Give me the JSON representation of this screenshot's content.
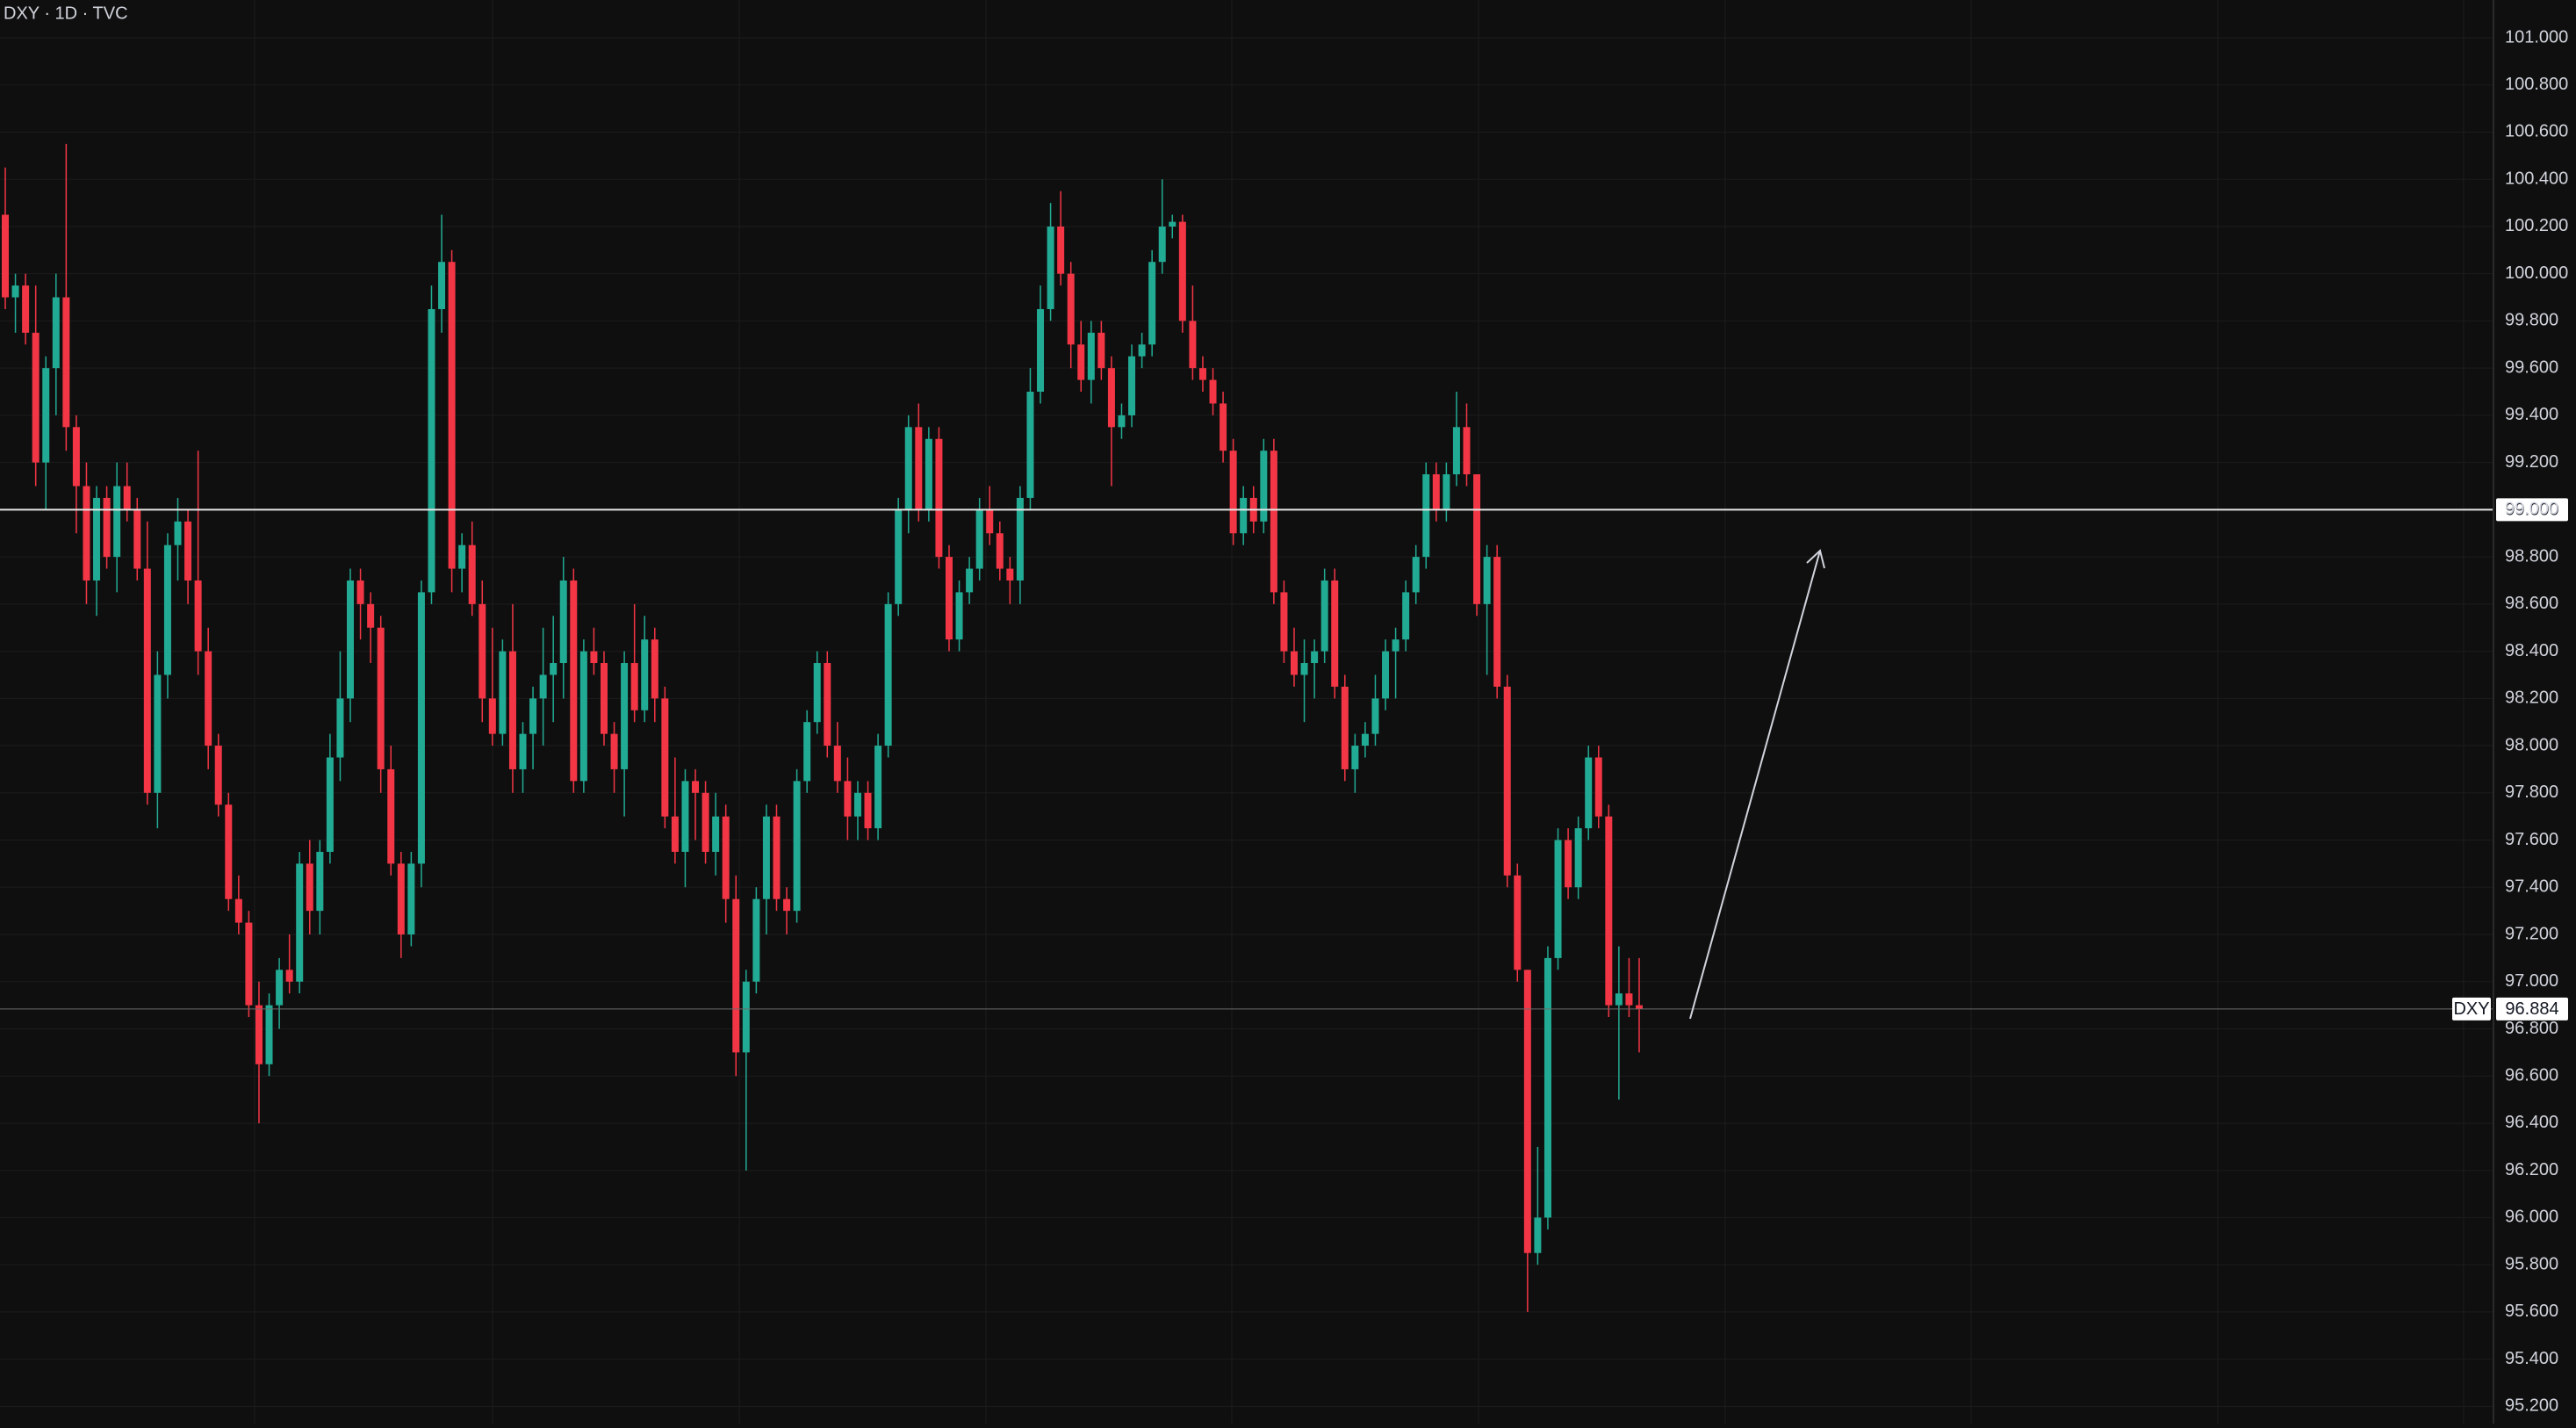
{
  "chart_data": {
    "type": "candlestick",
    "title": "DXY · 1D · TVC",
    "symbol": "DXY",
    "up_color": "#22ab94",
    "down_color": "#f23645",
    "ylim": [
      95.127,
      101.16
    ],
    "yticks": [
      {
        "value": 101,
        "label": "101.000"
      },
      {
        "value": 100.8,
        "label": "100.800"
      },
      {
        "value": 100.6,
        "label": "100.600"
      },
      {
        "value": 100.4,
        "label": "100.400"
      },
      {
        "value": 100.2,
        "label": "100.200"
      },
      {
        "value": 100,
        "label": "100.000"
      },
      {
        "value": 99.8,
        "label": "99.800"
      },
      {
        "value": 99.6,
        "label": "99.600"
      },
      {
        "value": 99.4,
        "label": "99.400"
      },
      {
        "value": 99.2,
        "label": "99.200"
      },
      {
        "value": 99,
        "label": "99.000"
      },
      {
        "value": 98.8,
        "label": "98.800"
      },
      {
        "value": 98.6,
        "label": "98.600"
      },
      {
        "value": 98.4,
        "label": "98.400"
      },
      {
        "value": 98.2,
        "label": "98.200"
      },
      {
        "value": 98,
        "label": "98.000"
      },
      {
        "value": 97.8,
        "label": "97.800"
      },
      {
        "value": 97.6,
        "label": "97.600"
      },
      {
        "value": 97.4,
        "label": "97.400"
      },
      {
        "value": 97.2,
        "label": "97.200"
      },
      {
        "value": 97,
        "label": "97.000"
      },
      {
        "value": 96.8,
        "label": "96.800"
      },
      {
        "value": 96.6,
        "label": "96.600"
      },
      {
        "value": 96.4,
        "label": "96.400"
      },
      {
        "value": 96.2,
        "label": "96.200"
      },
      {
        "value": 96,
        "label": "96.000"
      },
      {
        "value": 95.8,
        "label": "95.800"
      },
      {
        "value": 95.6,
        "label": "95.600"
      },
      {
        "value": 95.4,
        "label": "95.400"
      },
      {
        "value": 95.2,
        "label": "95.200"
      }
    ],
    "grid": true,
    "horizontal_line": {
      "value": 99,
      "label": "99.000"
    },
    "last_price": 96.884,
    "ohlc": [
      [
        100.25,
        100.45,
        99.85,
        99.9
      ],
      [
        99.9,
        100.0,
        99.75,
        99.95
      ],
      [
        99.95,
        100.0,
        99.7,
        99.75
      ],
      [
        99.75,
        99.95,
        99.1,
        99.2
      ],
      [
        99.2,
        99.65,
        99.0,
        99.6
      ],
      [
        99.6,
        100.0,
        99.4,
        99.9
      ],
      [
        99.9,
        100.55,
        99.25,
        99.35
      ],
      [
        99.35,
        99.4,
        98.9,
        99.1
      ],
      [
        99.1,
        99.2,
        98.6,
        98.7
      ],
      [
        98.7,
        99.1,
        98.55,
        99.05
      ],
      [
        99.05,
        99.1,
        98.75,
        98.8
      ],
      [
        98.8,
        99.2,
        98.65,
        99.1
      ],
      [
        99.1,
        99.2,
        98.95,
        99.0
      ],
      [
        99.0,
        99.05,
        98.7,
        98.75
      ],
      [
        98.75,
        98.95,
        97.75,
        97.8
      ],
      [
        97.8,
        98.4,
        97.65,
        98.3
      ],
      [
        98.3,
        98.9,
        98.2,
        98.85
      ],
      [
        98.85,
        99.05,
        98.7,
        98.95
      ],
      [
        98.95,
        99.0,
        98.6,
        98.7
      ],
      [
        98.7,
        99.25,
        98.3,
        98.4
      ],
      [
        98.4,
        98.5,
        97.9,
        98.0
      ],
      [
        98.0,
        98.05,
        97.7,
        97.75
      ],
      [
        97.75,
        97.8,
        97.3,
        97.35
      ],
      [
        97.35,
        97.45,
        97.2,
        97.25
      ],
      [
        97.25,
        97.3,
        96.85,
        96.9
      ],
      [
        96.9,
        97.0,
        96.4,
        96.65
      ],
      [
        96.65,
        96.95,
        96.6,
        96.9
      ],
      [
        96.9,
        97.1,
        96.8,
        97.05
      ],
      [
        97.05,
        97.2,
        96.95,
        97.0
      ],
      [
        97.0,
        97.55,
        96.95,
        97.5
      ],
      [
        97.5,
        97.6,
        97.2,
        97.3
      ],
      [
        97.3,
        97.6,
        97.2,
        97.55
      ],
      [
        97.55,
        98.05,
        97.5,
        97.95
      ],
      [
        97.95,
        98.4,
        97.85,
        98.2
      ],
      [
        98.2,
        98.75,
        98.1,
        98.7
      ],
      [
        98.7,
        98.75,
        98.45,
        98.6
      ],
      [
        98.6,
        98.65,
        98.35,
        98.5
      ],
      [
        98.5,
        98.55,
        97.8,
        97.9
      ],
      [
        97.9,
        98.0,
        97.45,
        97.5
      ],
      [
        97.5,
        97.55,
        97.1,
        97.2
      ],
      [
        97.2,
        97.55,
        97.15,
        97.5
      ],
      [
        97.5,
        98.7,
        97.4,
        98.65
      ],
      [
        98.65,
        99.95,
        98.6,
        99.85
      ],
      [
        99.85,
        100.25,
        99.75,
        100.05
      ],
      [
        100.05,
        100.1,
        98.65,
        98.75
      ],
      [
        98.75,
        98.9,
        98.65,
        98.85
      ],
      [
        98.85,
        98.95,
        98.55,
        98.6
      ],
      [
        98.6,
        98.7,
        98.1,
        98.2
      ],
      [
        98.2,
        98.5,
        98.0,
        98.05
      ],
      [
        98.05,
        98.45,
        98.0,
        98.4
      ],
      [
        98.4,
        98.6,
        97.8,
        97.9
      ],
      [
        97.9,
        98.1,
        97.8,
        98.05
      ],
      [
        98.05,
        98.25,
        97.9,
        98.2
      ],
      [
        98.2,
        98.5,
        98.0,
        98.3
      ],
      [
        98.3,
        98.55,
        98.1,
        98.35
      ],
      [
        98.35,
        98.8,
        98.2,
        98.7
      ],
      [
        98.7,
        98.75,
        97.8,
        97.85
      ],
      [
        97.85,
        98.45,
        97.8,
        98.4
      ],
      [
        98.4,
        98.5,
        98.3,
        98.35
      ],
      [
        98.35,
        98.4,
        98.0,
        98.05
      ],
      [
        98.05,
        98.1,
        97.8,
        97.9
      ],
      [
        97.9,
        98.4,
        97.7,
        98.35
      ],
      [
        98.35,
        98.6,
        98.1,
        98.15
      ],
      [
        98.15,
        98.55,
        98.1,
        98.45
      ],
      [
        98.45,
        98.5,
        98.1,
        98.2
      ],
      [
        98.2,
        98.25,
        97.65,
        97.7
      ],
      [
        97.7,
        97.95,
        97.5,
        97.55
      ],
      [
        97.55,
        97.9,
        97.4,
        97.85
      ],
      [
        97.85,
        97.9,
        97.6,
        97.8
      ],
      [
        97.8,
        97.85,
        97.5,
        97.55
      ],
      [
        97.55,
        97.8,
        97.45,
        97.7
      ],
      [
        97.7,
        97.75,
        97.25,
        97.35
      ],
      [
        97.35,
        97.45,
        96.6,
        96.7
      ],
      [
        96.7,
        97.05,
        96.2,
        97.0
      ],
      [
        97.0,
        97.4,
        96.95,
        97.35
      ],
      [
        97.35,
        97.75,
        97.2,
        97.7
      ],
      [
        97.7,
        97.75,
        97.3,
        97.35
      ],
      [
        97.35,
        97.4,
        97.2,
        97.3
      ],
      [
        97.3,
        97.9,
        97.25,
        97.85
      ],
      [
        97.85,
        98.15,
        97.8,
        98.1
      ],
      [
        98.1,
        98.4,
        98.05,
        98.35
      ],
      [
        98.35,
        98.4,
        97.95,
        98.0
      ],
      [
        98.0,
        98.1,
        97.8,
        97.85
      ],
      [
        97.85,
        97.95,
        97.6,
        97.7
      ],
      [
        97.7,
        97.85,
        97.6,
        97.8
      ],
      [
        97.8,
        97.85,
        97.6,
        97.65
      ],
      [
        97.65,
        98.05,
        97.6,
        98.0
      ],
      [
        98.0,
        98.65,
        97.95,
        98.6
      ],
      [
        98.6,
        99.05,
        98.55,
        99.0
      ],
      [
        99.0,
        99.4,
        98.9,
        99.35
      ],
      [
        99.35,
        99.45,
        98.95,
        99.0
      ],
      [
        99.0,
        99.35,
        98.95,
        99.3
      ],
      [
        99.3,
        99.35,
        98.75,
        98.8
      ],
      [
        98.8,
        98.85,
        98.4,
        98.45
      ],
      [
        98.45,
        98.7,
        98.4,
        98.65
      ],
      [
        98.65,
        98.8,
        98.6,
        98.75
      ],
      [
        98.75,
        99.05,
        98.7,
        99.0
      ],
      [
        99.0,
        99.1,
        98.85,
        98.9
      ],
      [
        98.9,
        98.95,
        98.7,
        98.75
      ],
      [
        98.75,
        98.8,
        98.6,
        98.7
      ],
      [
        98.7,
        99.1,
        98.6,
        99.05
      ],
      [
        99.05,
        99.6,
        99.0,
        99.5
      ],
      [
        99.5,
        99.95,
        99.45,
        99.85
      ],
      [
        99.85,
        100.3,
        99.8,
        100.2
      ],
      [
        100.2,
        100.35,
        99.95,
        100.0
      ],
      [
        100.0,
        100.05,
        99.6,
        99.7
      ],
      [
        99.7,
        99.8,
        99.5,
        99.55
      ],
      [
        99.55,
        99.8,
        99.45,
        99.75
      ],
      [
        99.75,
        99.8,
        99.55,
        99.6
      ],
      [
        99.6,
        99.65,
        99.1,
        99.35
      ],
      [
        99.35,
        99.45,
        99.3,
        99.4
      ],
      [
        99.4,
        99.7,
        99.35,
        99.65
      ],
      [
        99.65,
        99.75,
        99.6,
        99.7
      ],
      [
        99.7,
        100.1,
        99.65,
        100.05
      ],
      [
        100.05,
        100.4,
        100.0,
        100.2
      ],
      [
        100.2,
        100.25,
        100.15,
        100.22
      ],
      [
        100.22,
        100.25,
        99.75,
        99.8
      ],
      [
        99.8,
        99.95,
        99.55,
        99.6
      ],
      [
        99.6,
        99.65,
        99.5,
        99.55
      ],
      [
        99.55,
        99.6,
        99.4,
        99.45
      ],
      [
        99.45,
        99.5,
        99.2,
        99.25
      ],
      [
        99.25,
        99.3,
        98.85,
        98.9
      ],
      [
        98.9,
        99.1,
        98.85,
        99.05
      ],
      [
        99.05,
        99.1,
        98.9,
        98.95
      ],
      [
        98.95,
        99.3,
        98.9,
        99.25
      ],
      [
        99.25,
        99.3,
        98.6,
        98.65
      ],
      [
        98.65,
        98.7,
        98.35,
        98.4
      ],
      [
        98.4,
        98.5,
        98.25,
        98.3
      ],
      [
        98.3,
        98.45,
        98.1,
        98.35
      ],
      [
        98.35,
        98.45,
        98.2,
        98.4
      ],
      [
        98.4,
        98.75,
        98.35,
        98.7
      ],
      [
        98.7,
        98.75,
        98.2,
        98.25
      ],
      [
        98.25,
        98.3,
        97.85,
        97.9
      ],
      [
        97.9,
        98.05,
        97.8,
        98.0
      ],
      [
        98.0,
        98.1,
        97.95,
        98.05
      ],
      [
        98.05,
        98.3,
        98.0,
        98.2
      ],
      [
        98.2,
        98.45,
        98.15,
        98.4
      ],
      [
        98.4,
        98.5,
        98.2,
        98.45
      ],
      [
        98.45,
        98.7,
        98.4,
        98.65
      ],
      [
        98.65,
        98.85,
        98.6,
        98.8
      ],
      [
        98.8,
        99.2,
        98.75,
        99.15
      ],
      [
        99.15,
        99.2,
        98.95,
        99.0
      ],
      [
        99.0,
        99.2,
        98.95,
        99.15
      ],
      [
        99.15,
        99.5,
        99.1,
        99.35
      ],
      [
        99.35,
        99.45,
        99.1,
        99.15
      ],
      [
        99.15,
        99.15,
        98.55,
        98.6
      ],
      [
        98.6,
        98.85,
        98.3,
        98.8
      ],
      [
        98.8,
        98.85,
        98.2,
        98.25
      ],
      [
        98.25,
        98.3,
        97.4,
        97.45
      ],
      [
        97.45,
        97.5,
        97.0,
        97.05
      ],
      [
        97.05,
        97.05,
        95.6,
        95.85
      ],
      [
        95.85,
        96.3,
        95.8,
        96.0
      ],
      [
        96.0,
        97.15,
        95.95,
        97.1
      ],
      [
        97.1,
        97.65,
        97.05,
        97.6
      ],
      [
        97.6,
        97.65,
        97.35,
        97.4
      ],
      [
        97.4,
        97.7,
        97.35,
        97.65
      ],
      [
        97.65,
        98.0,
        97.6,
        97.95
      ],
      [
        97.95,
        98.0,
        97.65,
        97.7
      ],
      [
        97.7,
        97.75,
        96.85,
        96.9
      ],
      [
        96.9,
        97.15,
        96.5,
        96.95
      ],
      [
        96.95,
        97.1,
        96.85,
        96.9
      ],
      [
        96.9,
        97.1,
        96.7,
        96.884
      ]
    ]
  }
}
